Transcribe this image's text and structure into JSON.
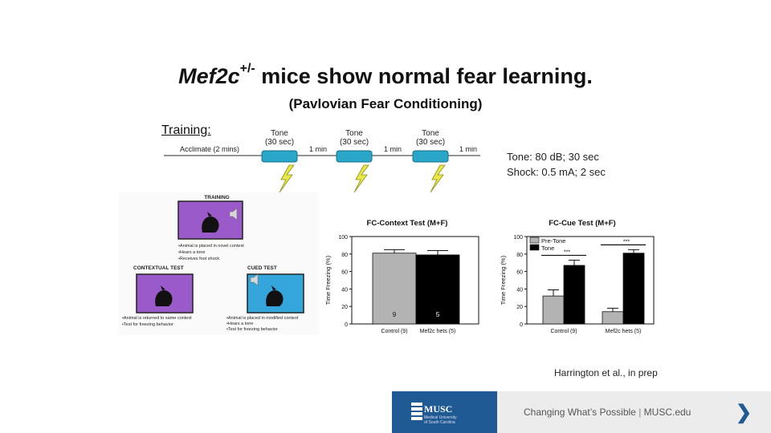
{
  "title": {
    "italic": "Mef2c",
    "superscript": "+/-",
    "rest": " mice show normal fear learning."
  },
  "subtitle": "(Pavlovian Fear Conditioning)",
  "training": {
    "label": "Training:",
    "acclimate": "Acclimate (2 mins)",
    "tone_label": "Tone",
    "tone_duration": "(30 sec)",
    "interval": "1 min"
  },
  "params": {
    "tone": "Tone:  80 dB; 30 sec",
    "shock": "Shock: 0.5 mA; 2 sec"
  },
  "panel": {
    "training_title": "TRAINING",
    "training_notes": [
      "•Animal is placed in novel context",
      "•Hears a tone",
      "•Receives foot shock"
    ],
    "contextual_title": "CONTEXTUAL TEST",
    "contextual_notes": [
      "•Animal is returned to same context",
      "•Test for freezing behavior"
    ],
    "cued_title": "CUED TEST",
    "cued_notes": [
      "•Animal is placed in modified context",
      "•Hears a tone",
      "•Test for freezing behavior"
    ]
  },
  "chart_data": [
    {
      "type": "bar",
      "title": "FC-Context Test (M+F)",
      "ylabel": "Time Freezing (%)",
      "ylim": [
        0,
        100
      ],
      "yticks": [
        "0",
        "20",
        "40",
        "60",
        "80",
        "100"
      ],
      "categories": [
        "Control (9)",
        "Mef2c hets (5)"
      ],
      "values": [
        81,
        79
      ],
      "errors": [
        4,
        5
      ],
      "n_labels": [
        "9",
        "5"
      ],
      "colors": [
        "#b3b3b3",
        "#000000"
      ]
    },
    {
      "type": "bar",
      "title": "FC-Cue Test (M+F)",
      "ylabel": "Time Freezing (%)",
      "ylim": [
        0,
        100
      ],
      "yticks": [
        "0",
        "20",
        "40",
        "60",
        "80",
        "100"
      ],
      "categories": [
        "Control (9)",
        "Mef2c hets (5)"
      ],
      "series": [
        {
          "name": "Pre-Tone",
          "values": [
            32,
            14
          ],
          "errors": [
            7,
            4
          ],
          "color": "#b3b3b3"
        },
        {
          "name": "Tone",
          "values": [
            67,
            81
          ],
          "errors": [
            6,
            4
          ],
          "color": "#000000"
        }
      ],
      "significance": [
        "***",
        "***"
      ],
      "legend_position": "top-left"
    }
  ],
  "citation": "Harrington et al., in prep",
  "footer": {
    "logo_name": "MUSC",
    "logo_sub": [
      "Medical University",
      "of South Carolina"
    ],
    "tagline_left": "Changing What’s Possible",
    "separator": "|",
    "tagline_right": "MUSC.edu",
    "arrow": "❯"
  }
}
